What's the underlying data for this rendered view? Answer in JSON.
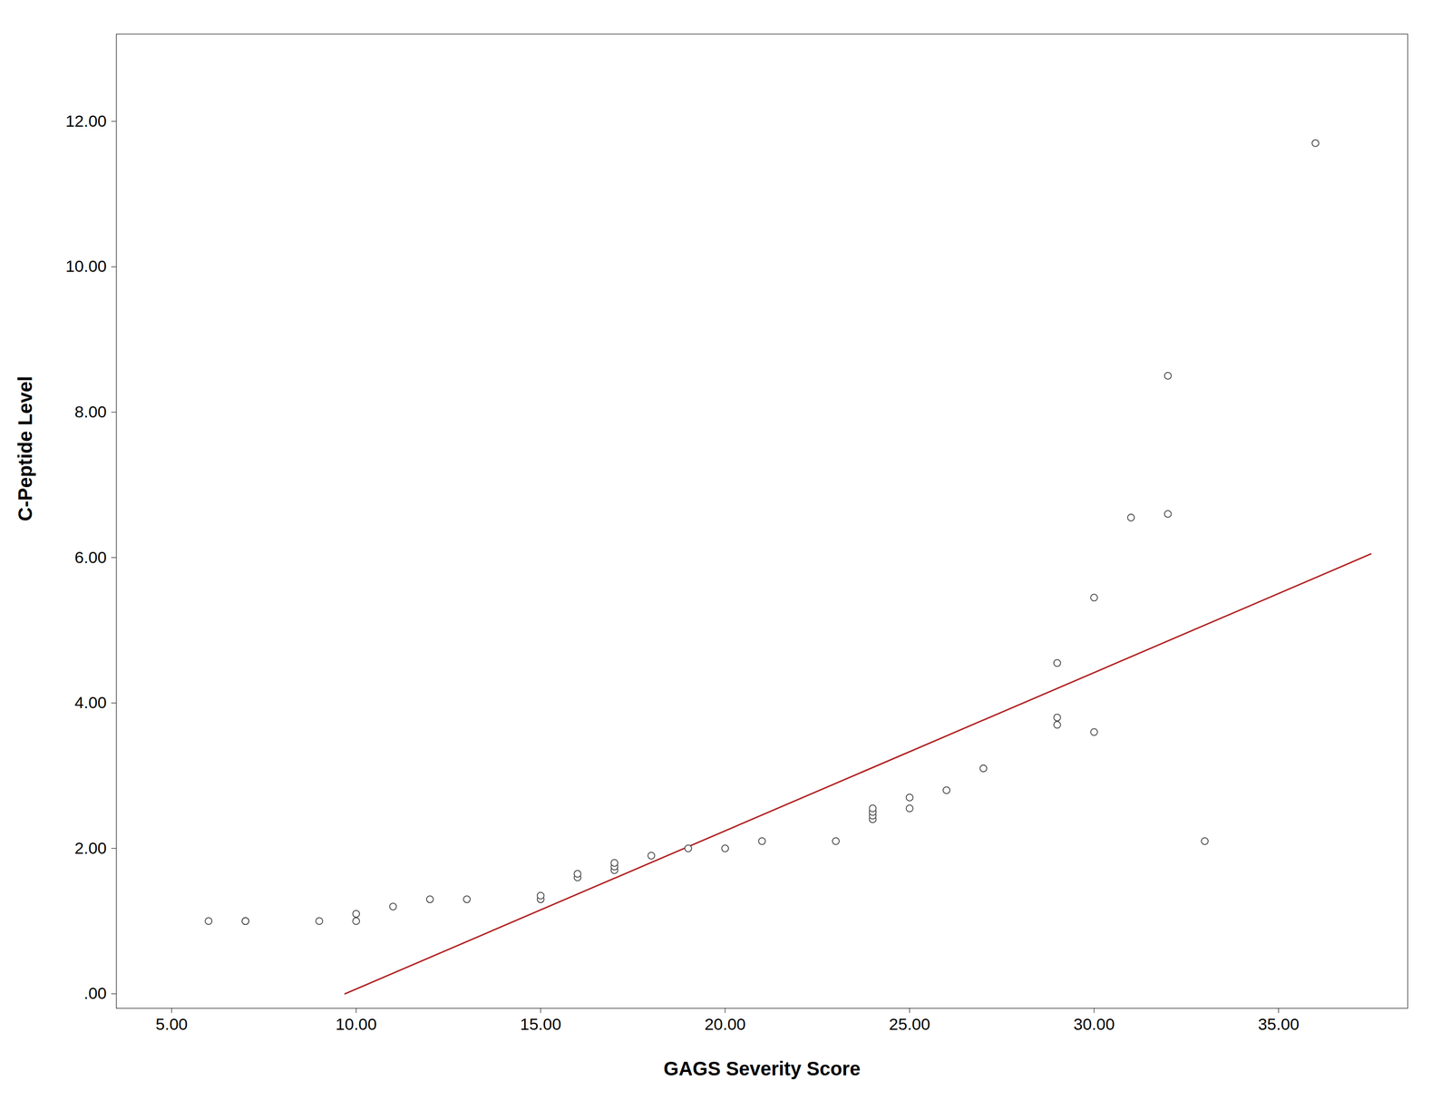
{
  "chart_data": {
    "type": "scatter",
    "x_label": "GAGS Severity Score",
    "y_label": "C-Peptide Level",
    "xlim": [
      3.5,
      38.5
    ],
    "ylim": [
      -0.2,
      13.2
    ],
    "xticks": [
      {
        "value": 5,
        "label": "5.00"
      },
      {
        "value": 10,
        "label": "10.00"
      },
      {
        "value": 15,
        "label": "15.00"
      },
      {
        "value": 20,
        "label": "20.00"
      },
      {
        "value": 25,
        "label": "25.00"
      },
      {
        "value": 30,
        "label": "30.00"
      },
      {
        "value": 35,
        "label": "35.00"
      }
    ],
    "yticks": [
      {
        "value": 0,
        "label": ".00"
      },
      {
        "value": 2,
        "label": "2.00"
      },
      {
        "value": 4,
        "label": "4.00"
      },
      {
        "value": 6,
        "label": "6.00"
      },
      {
        "value": 8,
        "label": "8.00"
      },
      {
        "value": 10,
        "label": "10.00"
      },
      {
        "value": 12,
        "label": "12.00"
      }
    ],
    "grid": false,
    "series": [
      {
        "type": "line",
        "color": "#b22222",
        "x": [
          9.7,
          37.5
        ],
        "values": [
          0.0,
          6.05
        ]
      },
      {
        "type": "scatter",
        "marker": "circle",
        "color": "#444444",
        "x": [
          6.0,
          7.0,
          7.0,
          7.0,
          9.0,
          10.0,
          10.0,
          11.0,
          12.0,
          13.0,
          15.0,
          15.0,
          16.0,
          16.0,
          17.0,
          17.0,
          17.0,
          18.0,
          19.0,
          20.0,
          21.0,
          23.0,
          24.0,
          24.0,
          24.0,
          24.0,
          25.0,
          25.0,
          26.0,
          27.0,
          29.0,
          29.0,
          29.0,
          30.0,
          30.0,
          31.0,
          32.0,
          32.0,
          33.0,
          36.0
        ],
        "values": [
          1.0,
          1.0,
          1.0,
          1.0,
          1.0,
          1.0,
          1.1,
          1.2,
          1.3,
          1.3,
          1.3,
          1.35,
          1.6,
          1.65,
          1.7,
          1.75,
          1.8,
          1.9,
          2.0,
          2.0,
          2.1,
          2.1,
          2.4,
          2.45,
          2.5,
          2.55,
          2.55,
          2.7,
          2.8,
          3.1,
          3.7,
          3.8,
          4.55,
          3.6,
          5.45,
          6.55,
          6.6,
          8.5,
          2.1,
          11.7
        ]
      }
    ]
  }
}
